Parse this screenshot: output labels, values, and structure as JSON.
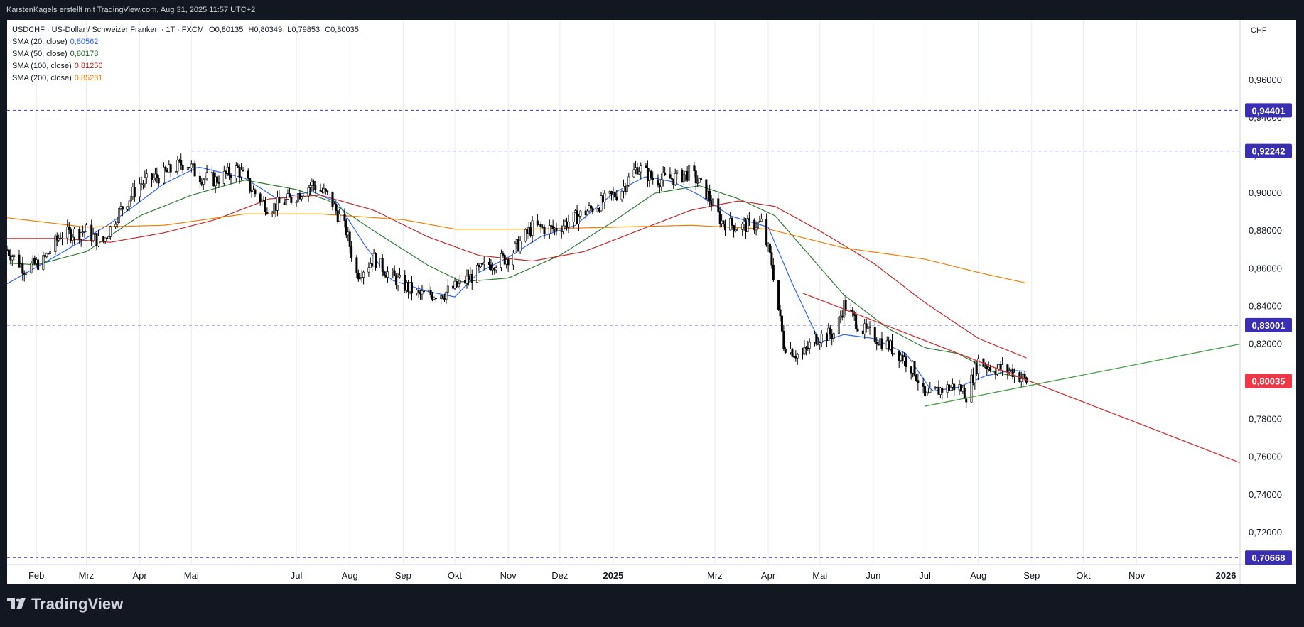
{
  "header": {
    "attribution": "KarstenKagels erstellt mit TradingView.com, Aug 31, 2025 11:57 UTC+2"
  },
  "legend": {
    "symbol_line": "USDCHF · US-Dollar / Schweizer Franken · 1T · FXCM",
    "ohlc": {
      "open_label": "O",
      "open": "0,80135",
      "high_label": "H",
      "high": "0,80349",
      "low_label": "L",
      "low": "0,79853",
      "close_label": "C",
      "close": "0,80035"
    },
    "indicators": [
      {
        "label": "SMA (20, close)",
        "value": "0,80562",
        "color": "#2962ff"
      },
      {
        "label": "SMA (50, close)",
        "value": "0,80178",
        "color": "#1b5e20"
      },
      {
        "label": "SMA (100, close)",
        "value": "0,81256",
        "color": "#b71c1c"
      },
      {
        "label": "SMA (200, close)",
        "value": "0,85231",
        "color": "#f57c00"
      }
    ]
  },
  "axis": {
    "currency": "CHF"
  },
  "branding": {
    "name": "TradingView"
  },
  "colors": {
    "candle": "#000000",
    "hline": "#3d3dbd",
    "label_bg": "#3a2fb3",
    "last_price_bg": "#f23645",
    "trend_red": "#d32f2f",
    "trend_green": "#43a047"
  },
  "chart_data": {
    "type": "candlestick",
    "symbol": "USDCHF",
    "timeframe": "1T",
    "x_range": [
      "2024-01-15",
      "2025-12-31"
    ],
    "ylim": [
      0.703,
      0.992
    ],
    "y_ticks": [
      "0,70000",
      "0,72000",
      "0,74000",
      "0,76000",
      "0,78000",
      "0,80000",
      "0,82000",
      "0,84000",
      "0,86000",
      "0,88000",
      "0,90000",
      "0,92000",
      "0,94000",
      "0,96000"
    ],
    "x_ticks": [
      {
        "label": "Feb",
        "date": "2024-02-01"
      },
      {
        "label": "Mrz",
        "date": "2024-03-01"
      },
      {
        "label": "Apr",
        "date": "2024-04-01"
      },
      {
        "label": "Mai",
        "date": "2024-05-01"
      },
      {
        "label": "Jul",
        "date": "2024-07-01"
      },
      {
        "label": "Aug",
        "date": "2024-08-01"
      },
      {
        "label": "Sep",
        "date": "2024-09-01"
      },
      {
        "label": "Okt",
        "date": "2024-10-01"
      },
      {
        "label": "Nov",
        "date": "2024-11-01"
      },
      {
        "label": "Dez",
        "date": "2024-12-01"
      },
      {
        "label": "2025",
        "date": "2025-01-01",
        "bold": true
      },
      {
        "label": "Mrz",
        "date": "2025-03-01"
      },
      {
        "label": "Apr",
        "date": "2025-04-01"
      },
      {
        "label": "Mai",
        "date": "2025-05-01"
      },
      {
        "label": "Jun",
        "date": "2025-06-01"
      },
      {
        "label": "Jul",
        "date": "2025-07-01"
      },
      {
        "label": "Aug",
        "date": "2025-08-01"
      },
      {
        "label": "Sep",
        "date": "2025-09-01"
      },
      {
        "label": "Okt",
        "date": "2025-10-01"
      },
      {
        "label": "Nov",
        "date": "2025-11-01"
      },
      {
        "label": "2026",
        "date": "2025-12-31",
        "bold": true
      }
    ],
    "horizontal_levels": [
      {
        "value": 0.94401,
        "label": "0,94401",
        "from": "2024-01-15"
      },
      {
        "value": 0.92242,
        "label": "0,92242",
        "from": "2024-05-01"
      },
      {
        "value": 0.83001,
        "label": "0,83001",
        "from": "2024-01-15"
      },
      {
        "value": 0.70668,
        "label": "0,70668",
        "from": "2024-01-15"
      }
    ],
    "last_price": {
      "value": 0.80035,
      "label": "0,80035"
    },
    "trendlines": [
      {
        "name": "resistance",
        "color": "red",
        "points": [
          [
            "2025-04-21",
            0.847
          ],
          [
            "2025-12-31",
            0.757
          ]
        ]
      },
      {
        "name": "support",
        "color": "green",
        "points": [
          [
            "2025-07-01",
            0.787
          ],
          [
            "2025-12-31",
            0.82
          ]
        ]
      }
    ],
    "sma_anchors": {
      "sma20": [
        [
          "2024-01-15",
          0.852
        ],
        [
          "2024-02-15",
          0.868
        ],
        [
          "2024-03-15",
          0.884
        ],
        [
          "2024-04-15",
          0.905
        ],
        [
          "2024-05-05",
          0.914
        ],
        [
          "2024-06-01",
          0.908
        ],
        [
          "2024-06-20",
          0.897
        ],
        [
          "2024-07-10",
          0.901
        ],
        [
          "2024-07-25",
          0.895
        ],
        [
          "2024-08-10",
          0.872
        ],
        [
          "2024-08-25",
          0.854
        ],
        [
          "2024-09-15",
          0.848
        ],
        [
          "2024-10-01",
          0.845
        ],
        [
          "2024-10-15",
          0.858
        ],
        [
          "2024-11-01",
          0.866
        ],
        [
          "2024-11-20",
          0.877
        ],
        [
          "2024-12-10",
          0.883
        ],
        [
          "2025-01-01",
          0.9
        ],
        [
          "2025-01-20",
          0.909
        ],
        [
          "2025-02-05",
          0.906
        ],
        [
          "2025-02-20",
          0.899
        ],
        [
          "2025-03-10",
          0.888
        ],
        [
          "2025-04-01",
          0.882
        ],
        [
          "2025-04-15",
          0.852
        ],
        [
          "2025-05-01",
          0.821
        ],
        [
          "2025-05-15",
          0.825
        ],
        [
          "2025-06-01",
          0.823
        ],
        [
          "2025-06-20",
          0.815
        ],
        [
          "2025-07-05",
          0.795
        ],
        [
          "2025-07-20",
          0.797
        ],
        [
          "2025-08-05",
          0.803
        ],
        [
          "2025-08-20",
          0.806
        ],
        [
          "2025-08-29",
          0.8056
        ]
      ],
      "sma50": [
        [
          "2024-01-15",
          0.863
        ],
        [
          "2024-02-01",
          0.862
        ],
        [
          "2024-03-01",
          0.869
        ],
        [
          "2024-04-01",
          0.888
        ],
        [
          "2024-05-01",
          0.899
        ],
        [
          "2024-06-01",
          0.907
        ],
        [
          "2024-07-01",
          0.902
        ],
        [
          "2024-07-20",
          0.896
        ],
        [
          "2024-08-15",
          0.88
        ],
        [
          "2024-09-15",
          0.862
        ],
        [
          "2024-10-05",
          0.853
        ],
        [
          "2024-11-01",
          0.855
        ],
        [
          "2024-12-01",
          0.867
        ],
        [
          "2025-01-01",
          0.885
        ],
        [
          "2025-01-25",
          0.9
        ],
        [
          "2025-02-20",
          0.904
        ],
        [
          "2025-03-15",
          0.897
        ],
        [
          "2025-04-05",
          0.888
        ],
        [
          "2025-04-25",
          0.867
        ],
        [
          "2025-05-15",
          0.846
        ],
        [
          "2025-06-10",
          0.828
        ],
        [
          "2025-07-01",
          0.818
        ],
        [
          "2025-07-20",
          0.815
        ],
        [
          "2025-08-10",
          0.805
        ],
        [
          "2025-08-29",
          0.8018
        ]
      ],
      "sma100": [
        [
          "2024-01-15",
          0.876
        ],
        [
          "2024-02-15",
          0.876
        ],
        [
          "2024-03-15",
          0.874
        ],
        [
          "2024-04-15",
          0.879
        ],
        [
          "2024-05-15",
          0.886
        ],
        [
          "2024-06-15",
          0.897
        ],
        [
          "2024-07-15",
          0.899
        ],
        [
          "2024-08-15",
          0.891
        ],
        [
          "2024-09-15",
          0.877
        ],
        [
          "2024-10-15",
          0.867
        ],
        [
          "2024-11-15",
          0.864
        ],
        [
          "2024-12-15",
          0.869
        ],
        [
          "2025-01-15",
          0.88
        ],
        [
          "2025-02-15",
          0.891
        ],
        [
          "2025-03-15",
          0.896
        ],
        [
          "2025-04-05",
          0.893
        ],
        [
          "2025-05-01",
          0.88
        ],
        [
          "2025-06-01",
          0.863
        ],
        [
          "2025-07-01",
          0.842
        ],
        [
          "2025-08-01",
          0.823
        ],
        [
          "2025-08-29",
          0.8126
        ]
      ],
      "sma200": [
        [
          "2024-01-15",
          0.887
        ],
        [
          "2024-03-01",
          0.882
        ],
        [
          "2024-04-15",
          0.883
        ],
        [
          "2024-06-01",
          0.889
        ],
        [
          "2024-07-15",
          0.889
        ],
        [
          "2024-09-01",
          0.886
        ],
        [
          "2024-10-01",
          0.881
        ],
        [
          "2024-11-15",
          0.881
        ],
        [
          "2025-01-01",
          0.882
        ],
        [
          "2025-02-15",
          0.883
        ],
        [
          "2025-04-01",
          0.881
        ],
        [
          "2025-05-15",
          0.871
        ],
        [
          "2025-07-01",
          0.865
        ],
        [
          "2025-08-01",
          0.858
        ],
        [
          "2025-08-29",
          0.8523
        ]
      ]
    },
    "price_path": [
      [
        "2024-01-15",
        0.87
      ],
      [
        "2024-01-25",
        0.86
      ],
      [
        "2024-02-05",
        0.864
      ],
      [
        "2024-02-15",
        0.878
      ],
      [
        "2024-03-01",
        0.88
      ],
      [
        "2024-03-10",
        0.873
      ],
      [
        "2024-03-20",
        0.89
      ],
      [
        "2024-04-01",
        0.905
      ],
      [
        "2024-04-15",
        0.91
      ],
      [
        "2024-04-28",
        0.917
      ],
      [
        "2024-05-05",
        0.909
      ],
      [
        "2024-05-15",
        0.907
      ],
      [
        "2024-05-28",
        0.913
      ],
      [
        "2024-06-05",
        0.902
      ],
      [
        "2024-06-15",
        0.892
      ],
      [
        "2024-06-28",
        0.897
      ],
      [
        "2024-07-10",
        0.905
      ],
      [
        "2024-07-20",
        0.898
      ],
      [
        "2024-07-30",
        0.88
      ],
      [
        "2024-08-05",
        0.857
      ],
      [
        "2024-08-15",
        0.865
      ],
      [
        "2024-08-25",
        0.856
      ],
      [
        "2024-09-10",
        0.846
      ],
      [
        "2024-09-25",
        0.847
      ],
      [
        "2024-10-05",
        0.852
      ],
      [
        "2024-10-20",
        0.862
      ],
      [
        "2024-11-01",
        0.866
      ],
      [
        "2024-11-15",
        0.882
      ],
      [
        "2024-11-28",
        0.881
      ],
      [
        "2024-12-10",
        0.887
      ],
      [
        "2024-12-25",
        0.895
      ],
      [
        "2025-01-05",
        0.901
      ],
      [
        "2025-01-15",
        0.914
      ],
      [
        "2025-01-25",
        0.907
      ],
      [
        "2025-02-05",
        0.908
      ],
      [
        "2025-02-15",
        0.911
      ],
      [
        "2025-02-25",
        0.899
      ],
      [
        "2025-03-05",
        0.885
      ],
      [
        "2025-03-15",
        0.882
      ],
      [
        "2025-03-28",
        0.884
      ],
      [
        "2025-04-03",
        0.863
      ],
      [
        "2025-04-10",
        0.82
      ],
      [
        "2025-04-20",
        0.813
      ],
      [
        "2025-04-28",
        0.823
      ],
      [
        "2025-05-10",
        0.826
      ],
      [
        "2025-05-15",
        0.841
      ],
      [
        "2025-05-25",
        0.828
      ],
      [
        "2025-06-05",
        0.822
      ],
      [
        "2025-06-15",
        0.816
      ],
      [
        "2025-06-25",
        0.806
      ],
      [
        "2025-07-01",
        0.791
      ],
      [
        "2025-07-10",
        0.796
      ],
      [
        "2025-07-20",
        0.798
      ],
      [
        "2025-07-25",
        0.793
      ],
      [
        "2025-08-01",
        0.811
      ],
      [
        "2025-08-10",
        0.807
      ],
      [
        "2025-08-20",
        0.806
      ],
      [
        "2025-08-29",
        0.80035
      ]
    ]
  }
}
